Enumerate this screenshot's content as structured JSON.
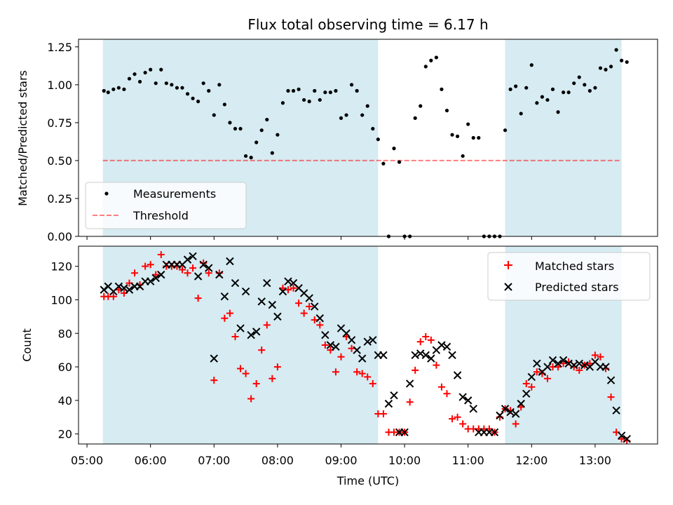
{
  "chart_data": {
    "type": "scatter",
    "title": "Flux total observing time = 6.17 h",
    "xlabel": "Time (UTC)",
    "x_ticks": [
      "05:00",
      "06:00",
      "07:00",
      "08:00",
      "09:00",
      "10:00",
      "11:00",
      "12:00",
      "13:00"
    ],
    "x_range": [
      "04:52",
      "13:59"
    ],
    "shaded_intervals": [
      [
        "05:15",
        "09:35"
      ],
      [
        "11:35",
        "13:25"
      ]
    ],
    "colors": {
      "shade": "#add8e6",
      "measurements": "#000000",
      "threshold": "#ff0000",
      "matched": "#ff0000",
      "predicted": "#000000"
    },
    "panels": [
      {
        "id": "ratio",
        "ylabel": "Matched/Predicted stars",
        "ylim": [
          0,
          1.3
        ],
        "yticks": [
          "0.00",
          "0.25",
          "0.50",
          "0.75",
          "1.00",
          "1.25"
        ],
        "legend": {
          "position": "lower left",
          "entries": [
            "Measurements",
            "Threshold"
          ]
        },
        "threshold": {
          "name": "Threshold",
          "value": 0.5
        },
        "series": [
          {
            "name": "Measurements",
            "marker": "dot",
            "x": [
              "05:16",
              "05:20",
              "05:25",
              "05:30",
              "05:35",
              "05:40",
              "05:45",
              "05:50",
              "05:55",
              "06:00",
              "06:05",
              "06:10",
              "06:15",
              "06:20",
              "06:25",
              "06:30",
              "06:35",
              "06:40",
              "06:45",
              "06:50",
              "06:55",
              "07:00",
              "07:05",
              "07:10",
              "07:15",
              "07:20",
              "07:25",
              "07:30",
              "07:35",
              "07:40",
              "07:45",
              "07:50",
              "07:55",
              "08:00",
              "08:05",
              "08:10",
              "08:15",
              "08:20",
              "08:25",
              "08:30",
              "08:35",
              "08:40",
              "08:45",
              "08:50",
              "08:55",
              "09:00",
              "09:05",
              "09:10",
              "09:15",
              "09:20",
              "09:25",
              "09:30",
              "09:35",
              "09:40",
              "09:45",
              "09:50",
              "09:55",
              "10:00",
              "10:05",
              "10:10",
              "10:15",
              "10:20",
              "10:25",
              "10:30",
              "10:35",
              "10:40",
              "10:45",
              "10:50",
              "10:55",
              "11:00",
              "11:05",
              "11:10",
              "11:15",
              "11:20",
              "11:25",
              "11:30",
              "11:35",
              "11:40",
              "11:45",
              "11:50",
              "11:55",
              "12:00",
              "12:05",
              "12:10",
              "12:15",
              "12:20",
              "12:25",
              "12:30",
              "12:35",
              "12:40",
              "12:45",
              "12:50",
              "12:55",
              "13:00",
              "13:05",
              "13:10",
              "13:15",
              "13:20",
              "13:25",
              "13:30"
            ],
            "y": [
              0.96,
              0.95,
              0.97,
              0.98,
              0.97,
              1.04,
              1.07,
              1.02,
              1.08,
              1.1,
              1.01,
              1.1,
              1.01,
              1.0,
              0.98,
              0.98,
              0.94,
              0.91,
              0.89,
              1.01,
              0.96,
              0.8,
              1.0,
              0.87,
              0.75,
              0.71,
              0.71,
              0.53,
              0.52,
              0.62,
              0.7,
              0.77,
              0.55,
              0.67,
              0.88,
              0.96,
              0.96,
              0.97,
              0.9,
              0.89,
              0.96,
              0.9,
              0.95,
              0.95,
              0.96,
              0.78,
              0.8,
              1.0,
              0.96,
              0.8,
              0.86,
              0.71,
              0.64,
              0.48,
              0.0,
              0.58,
              0.49,
              0.0,
              0.0,
              0.78,
              0.86,
              1.12,
              1.16,
              1.18,
              0.97,
              0.83,
              0.67,
              0.66,
              0.53,
              0.74,
              0.65,
              0.65,
              0.0,
              0.0,
              0.0,
              0.0,
              0.7,
              0.97,
              0.99,
              0.81,
              0.98,
              1.13,
              0.88,
              0.92,
              0.9,
              0.97,
              0.82,
              0.95,
              0.95,
              1.01,
              1.05,
              1.0,
              0.96,
              0.98,
              1.11,
              1.1,
              1.12,
              1.23,
              1.16,
              1.15
            ]
          }
        ]
      },
      {
        "id": "count",
        "ylabel": "Count",
        "ylim": [
          14,
          132
        ],
        "yticks": [
          "20",
          "40",
          "60",
          "80",
          "100",
          "120"
        ],
        "legend": {
          "position": "upper right",
          "entries": [
            "Matched stars",
            "Predicted stars"
          ]
        },
        "series": [
          {
            "name": "Matched stars",
            "marker": "plus",
            "x": [
              "05:16",
              "05:20",
              "05:25",
              "05:30",
              "05:35",
              "05:40",
              "05:45",
              "05:50",
              "05:55",
              "06:00",
              "06:05",
              "06:10",
              "06:15",
              "06:20",
              "06:25",
              "06:30",
              "06:35",
              "06:40",
              "06:45",
              "06:50",
              "06:55",
              "07:00",
              "07:05",
              "07:10",
              "07:15",
              "07:20",
              "07:25",
              "07:30",
              "07:35",
              "07:40",
              "07:45",
              "07:50",
              "07:55",
              "08:00",
              "08:05",
              "08:10",
              "08:15",
              "08:20",
              "08:25",
              "08:30",
              "08:35",
              "08:40",
              "08:45",
              "08:50",
              "08:55",
              "09:00",
              "09:05",
              "09:10",
              "09:15",
              "09:20",
              "09:25",
              "09:30",
              "09:35",
              "09:40",
              "09:45",
              "09:50",
              "09:55",
              "10:00",
              "10:05",
              "10:10",
              "10:15",
              "10:20",
              "10:25",
              "10:30",
              "10:35",
              "10:40",
              "10:45",
              "10:50",
              "10:55",
              "11:00",
              "11:05",
              "11:10",
              "11:15",
              "11:20",
              "11:25",
              "11:30",
              "11:35",
              "11:40",
              "11:45",
              "11:50",
              "11:55",
              "12:00",
              "12:05",
              "12:10",
              "12:15",
              "12:20",
              "12:25",
              "12:30",
              "12:35",
              "12:40",
              "12:45",
              "12:50",
              "12:55",
              "13:00",
              "13:05",
              "13:10",
              "13:15",
              "13:20",
              "13:25",
              "13:30"
            ],
            "y": [
              102,
              102,
              102,
              106,
              104,
              110,
              116,
              109,
              120,
              121,
              115,
              127,
              120,
              120,
              120,
              118,
              116,
              119,
              101,
              122,
              116,
              52,
              116,
              89,
              92,
              78,
              59,
              56,
              41,
              50,
              70,
              85,
              53,
              60,
              107,
              106,
              107,
              98,
              92,
              96,
              88,
              85,
              73,
              70,
              57,
              66,
              78,
              71,
              57,
              56,
              54,
              50,
              32,
              32,
              21,
              21,
              21,
              21,
              39,
              58,
              75,
              78,
              76,
              61,
              48,
              44,
              29,
              30,
              26,
              23,
              23,
              23,
              23,
              23,
              21,
              30,
              35,
              34,
              26,
              36,
              50,
              48,
              57,
              56,
              53,
              60,
              60,
              62,
              63,
              60,
              58,
              61,
              62,
              67,
              66,
              59,
              42,
              21,
              17,
              16
            ]
          },
          {
            "name": "Predicted stars",
            "marker": "x",
            "x": [
              "05:16",
              "05:20",
              "05:25",
              "05:30",
              "05:35",
              "05:40",
              "05:45",
              "05:50",
              "05:55",
              "06:00",
              "06:05",
              "06:10",
              "06:15",
              "06:20",
              "06:25",
              "06:30",
              "06:35",
              "06:40",
              "06:45",
              "06:50",
              "06:55",
              "07:00",
              "07:05",
              "07:10",
              "07:15",
              "07:20",
              "07:25",
              "07:30",
              "07:35",
              "07:40",
              "07:45",
              "07:50",
              "07:55",
              "08:00",
              "08:05",
              "08:10",
              "08:15",
              "08:20",
              "08:25",
              "08:30",
              "08:35",
              "08:40",
              "08:45",
              "08:50",
              "08:55",
              "09:00",
              "09:05",
              "09:10",
              "09:15",
              "09:20",
              "09:25",
              "09:30",
              "09:35",
              "09:40",
              "09:45",
              "09:50",
              "09:55",
              "10:00",
              "10:05",
              "10:10",
              "10:15",
              "10:20",
              "10:25",
              "10:30",
              "10:35",
              "10:40",
              "10:45",
              "10:50",
              "10:55",
              "11:00",
              "11:05",
              "11:10",
              "11:15",
              "11:20",
              "11:25",
              "11:30",
              "11:35",
              "11:40",
              "11:45",
              "11:50",
              "11:55",
              "12:00",
              "12:05",
              "12:10",
              "12:15",
              "12:20",
              "12:25",
              "12:30",
              "12:35",
              "12:40",
              "12:45",
              "12:50",
              "12:55",
              "13:00",
              "13:05",
              "13:10",
              "13:15",
              "13:20",
              "13:25",
              "13:30"
            ],
            "y": [
              106,
              108,
              105,
              108,
              107,
              106,
              108,
              108,
              111,
              111,
              113,
              115,
              121,
              121,
              121,
              121,
              124,
              126,
              114,
              121,
              119,
              65,
              115,
              102,
              123,
              110,
              83,
              105,
              79,
              81,
              99,
              110,
              97,
              90,
              105,
              111,
              110,
              107,
              104,
              101,
              96,
              89,
              79,
              73,
              72,
              83,
              80,
              76,
              70,
              65,
              75,
              76,
              67,
              67,
              38,
              43,
              21,
              21,
              50,
              67,
              68,
              67,
              65,
              70,
              73,
              72,
              67,
              55,
              42,
              40,
              35,
              21,
              21,
              21,
              21,
              31,
              35,
              33,
              32,
              38,
              44,
              54,
              62,
              57,
              60,
              64,
              62,
              64,
              62,
              61,
              62,
              61,
              60,
              63,
              60,
              60,
              52,
              34,
              19,
              17
            ]
          }
        ]
      }
    ]
  }
}
